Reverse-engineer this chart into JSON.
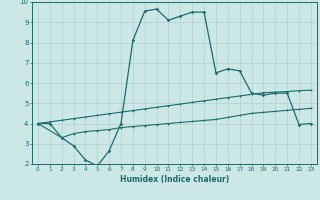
{
  "xlabel": "Humidex (Indice chaleur)",
  "xlim": [
    -0.5,
    23.5
  ],
  "ylim": [
    2,
    10
  ],
  "xticks": [
    0,
    1,
    2,
    3,
    4,
    5,
    6,
    7,
    8,
    9,
    10,
    11,
    12,
    13,
    14,
    15,
    16,
    17,
    18,
    19,
    20,
    21,
    22,
    23
  ],
  "yticks": [
    2,
    3,
    4,
    5,
    6,
    7,
    8,
    9,
    10
  ],
  "bg_color": "#cce8e6",
  "grid_color": "#b0d0ce",
  "line_color": "#1a6b6b",
  "line1_x": [
    0,
    1,
    2,
    3,
    4,
    5,
    6,
    7,
    8,
    9,
    10,
    11,
    12,
    13,
    14,
    15,
    16,
    17,
    18,
    19,
    20,
    21,
    22,
    23
  ],
  "line1_y": [
    4.0,
    4.0,
    3.3,
    2.9,
    2.2,
    1.9,
    2.65,
    4.0,
    8.1,
    9.55,
    9.65,
    9.1,
    9.3,
    9.5,
    9.5,
    6.5,
    6.7,
    6.6,
    5.5,
    5.4,
    5.5,
    5.5,
    3.95,
    4.0
  ],
  "line2_x": [
    0,
    1,
    2,
    3,
    4,
    5,
    6,
    7,
    8,
    9,
    10,
    11,
    12,
    13,
    14,
    15,
    16,
    17,
    18,
    19,
    20,
    21,
    22,
    23
  ],
  "line2_y": [
    4.0,
    4.08,
    4.16,
    4.24,
    4.32,
    4.4,
    4.48,
    4.56,
    4.64,
    4.72,
    4.8,
    4.88,
    4.96,
    5.04,
    5.12,
    5.2,
    5.28,
    5.36,
    5.44,
    5.52,
    5.55,
    5.58,
    5.62,
    5.65
  ],
  "line3_x": [
    0,
    2,
    3,
    4,
    5,
    6,
    7,
    8,
    9,
    10,
    11,
    12,
    13,
    14,
    15,
    16,
    17,
    18,
    19,
    20,
    21,
    22,
    23
  ],
  "line3_y": [
    4.0,
    3.3,
    3.5,
    3.6,
    3.65,
    3.7,
    3.8,
    3.85,
    3.9,
    3.95,
    4.0,
    4.05,
    4.1,
    4.15,
    4.2,
    4.3,
    4.4,
    4.5,
    4.55,
    4.6,
    4.65,
    4.7,
    4.75
  ]
}
